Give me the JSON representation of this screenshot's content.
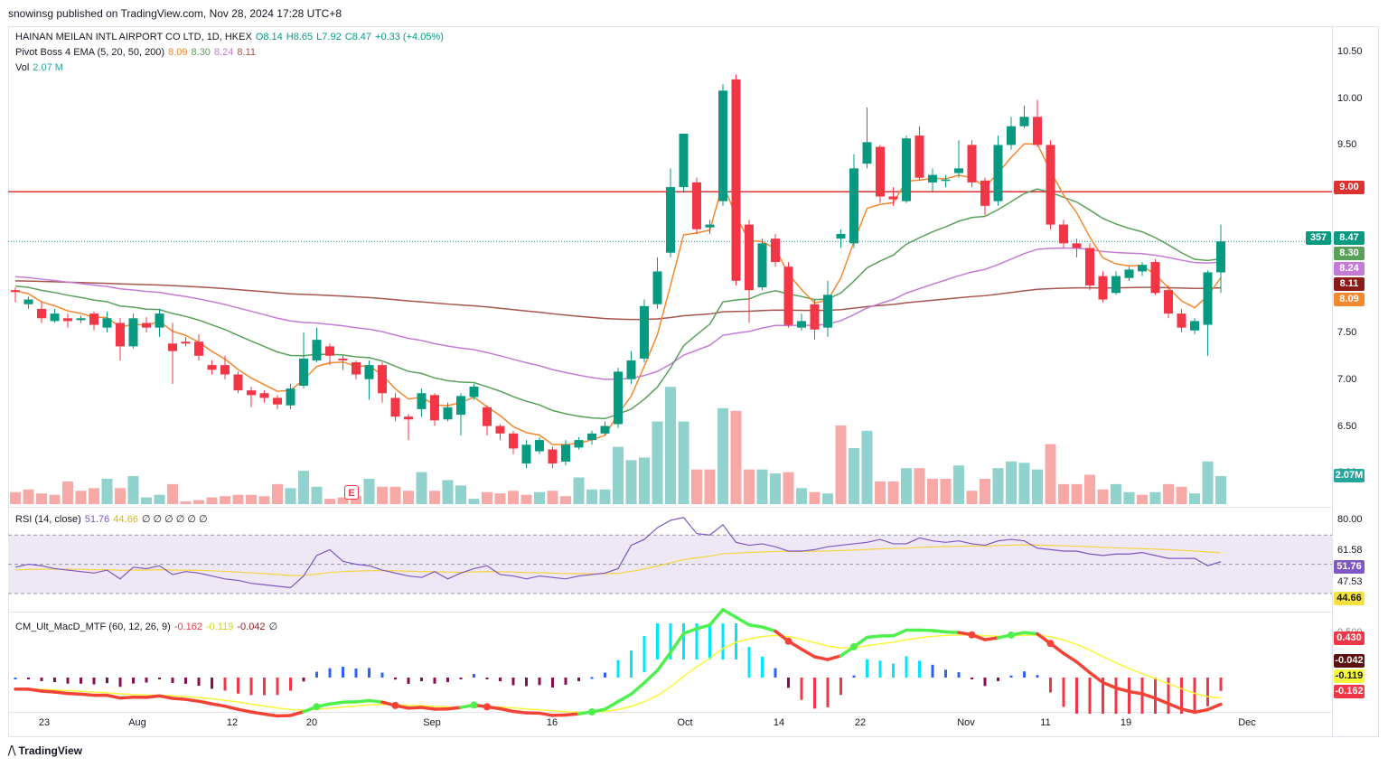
{
  "header": {
    "publisher": "snowinsg published on TradingView.com, Nov 28, 2024 17:28 UTC+8"
  },
  "footer": {
    "brand": "TradingView"
  },
  "legend": {
    "symbol": "HAINAN MEILAN INTL AIRPORT CO LTD, 1D, HKEX",
    "open": "O8.14",
    "high": "H8.65",
    "low": "L7.92",
    "close": "C8.47",
    "change": "+0.33 (+4.05%)",
    "ema_title": "Pivot Boss 4 EMA (5, 20, 50, 200)",
    "ema_values": [
      "8.09",
      "8.30",
      "8.24",
      "8.11"
    ],
    "vol_title": "Vol",
    "vol_value": "2.07 M",
    "rsi_title": "RSI (14, close)",
    "rsi_values": [
      "51.76",
      "44.66"
    ],
    "rsi_extra": "∅ ∅ ∅ ∅ ∅ ∅",
    "macd_title": "CM_Ult_MacD_MTF (60, 12, 26, 9)",
    "macd_values": [
      "-0.162",
      "-0.119",
      "-0.042"
    ],
    "macd_extra": "∅"
  },
  "colors": {
    "up": "#089981",
    "down": "#f23645",
    "vol_up": "#92d2cc",
    "vol_down": "#f7a9a7",
    "ema5": "#f4882f",
    "ema20": "#5aa05a",
    "ema50": "#c47bd6",
    "ema200": "#a4554f",
    "resistance": "#e03131",
    "rsi_line": "#7e57c2",
    "rsi_ma": "#f5d442",
    "rsi_band": "#ede7f6",
    "macd_up": "#4ef04e",
    "macd_down": "#f44336",
    "signal": "#f7f73a"
  },
  "chart_data": {
    "type": "candlestick",
    "x_ticks": [
      "23",
      "Aug",
      "12",
      "20",
      "Sep",
      "16",
      "Oct",
      "14",
      "22",
      "Nov",
      "11",
      "19",
      "Dec"
    ],
    "y_ticks": [
      "10.50",
      "10.00",
      "9.50",
      "9.00",
      "8.50",
      "8.00",
      "7.50",
      "7.00",
      "6.50",
      "6.00"
    ],
    "ylim": [
      5.95,
      10.7
    ],
    "resistance": 9.0,
    "candles": [
      [
        7.95,
        7.93,
        7.98,
        7.82
      ],
      [
        7.8,
        7.85,
        7.88,
        7.75
      ],
      [
        7.75,
        7.65,
        7.83,
        7.6
      ],
      [
        7.62,
        7.7,
        7.75,
        7.6
      ],
      [
        7.65,
        7.62,
        7.7,
        7.55
      ],
      [
        7.63,
        7.65,
        7.68,
        7.6
      ],
      [
        7.7,
        7.58,
        7.72,
        7.52
      ],
      [
        7.55,
        7.65,
        7.72,
        7.5
      ],
      [
        7.6,
        7.35,
        7.65,
        7.2
      ],
      [
        7.35,
        7.65,
        7.7,
        7.33
      ],
      [
        7.6,
        7.55,
        7.66,
        7.5
      ],
      [
        7.55,
        7.7,
        7.75,
        7.45
      ],
      [
        7.38,
        7.3,
        7.6,
        6.95
      ],
      [
        7.4,
        7.38,
        7.45,
        7.35
      ],
      [
        7.4,
        7.25,
        7.48,
        7.2
      ],
      [
        7.15,
        7.1,
        7.2,
        7.05
      ],
      [
        7.15,
        7.05,
        7.25,
        7.0
      ],
      [
        7.05,
        6.88,
        7.08,
        6.85
      ],
      [
        6.88,
        6.83,
        6.92,
        6.7
      ],
      [
        6.85,
        6.8,
        6.88,
        6.75
      ],
      [
        6.8,
        6.73,
        6.83,
        6.68
      ],
      [
        6.72,
        6.9,
        6.95,
        6.68
      ],
      [
        6.93,
        7.22,
        7.5,
        6.9
      ],
      [
        7.2,
        7.42,
        7.55,
        7.18
      ],
      [
        7.35,
        7.25,
        7.38,
        7.15
      ],
      [
        7.22,
        7.2,
        7.25,
        7.1
      ],
      [
        7.18,
        7.05,
        7.2,
        7.0
      ],
      [
        7.0,
        7.15,
        7.2,
        6.78
      ],
      [
        7.15,
        6.85,
        7.18,
        6.75
      ],
      [
        6.8,
        6.6,
        6.85,
        6.55
      ],
      [
        6.6,
        6.57,
        6.63,
        6.35
      ],
      [
        6.68,
        6.85,
        6.9,
        6.6
      ],
      [
        6.83,
        6.56,
        6.85,
        6.5
      ],
      [
        6.57,
        6.7,
        6.75,
        6.55
      ],
      [
        6.62,
        6.82,
        6.85,
        6.4
      ],
      [
        6.81,
        6.92,
        6.95,
        6.78
      ],
      [
        6.7,
        6.5,
        6.72,
        6.4
      ],
      [
        6.5,
        6.42,
        6.52,
        6.35
      ],
      [
        6.42,
        6.26,
        6.45,
        6.2
      ],
      [
        6.1,
        6.3,
        6.35,
        6.05
      ],
      [
        6.23,
        6.35,
        6.38,
        6.2
      ],
      [
        6.25,
        6.1,
        6.28,
        6.05
      ],
      [
        6.12,
        6.3,
        6.35,
        6.08
      ],
      [
        6.27,
        6.35,
        6.38,
        6.25
      ],
      [
        6.35,
        6.42,
        6.45,
        6.3
      ],
      [
        6.42,
        6.5,
        6.55,
        6.4
      ],
      [
        6.52,
        7.08,
        7.12,
        6.48
      ],
      [
        7.0,
        7.2,
        7.3,
        6.95
      ],
      [
        7.22,
        7.78,
        7.85,
        7.18
      ],
      [
        7.8,
        8.15,
        8.3,
        7.75
      ],
      [
        8.35,
        9.05,
        9.25,
        8.3
      ],
      [
        9.05,
        9.62,
        9.58,
        9.0
      ],
      [
        9.1,
        8.6,
        9.15,
        8.55
      ],
      [
        8.62,
        8.65,
        8.7,
        8.55
      ],
      [
        8.9,
        10.08,
        10.15,
        8.85
      ],
      [
        10.2,
        8.05,
        10.25,
        8.0
      ],
      [
        8.65,
        7.95,
        8.7,
        7.6
      ],
      [
        7.98,
        8.45,
        8.5,
        7.95
      ],
      [
        8.5,
        8.25,
        8.55,
        8.2
      ],
      [
        8.2,
        7.58,
        8.25,
        7.55
      ],
      [
        7.55,
        7.62,
        7.7,
        7.52
      ],
      [
        7.8,
        7.53,
        7.85,
        7.42
      ],
      [
        7.55,
        7.9,
        8.05,
        7.45
      ],
      [
        8.5,
        8.55,
        8.6,
        8.4
      ],
      [
        8.45,
        9.25,
        9.4,
        8.4
      ],
      [
        9.3,
        9.53,
        9.9,
        9.25
      ],
      [
        9.48,
        8.95,
        9.5,
        8.88
      ],
      [
        8.95,
        8.92,
        9.05,
        8.85
      ],
      [
        8.9,
        9.57,
        9.6,
        8.88
      ],
      [
        9.6,
        9.15,
        9.7,
        9.12
      ],
      [
        9.1,
        9.18,
        9.25,
        9.0
      ],
      [
        9.12,
        9.13,
        9.18,
        9.05
      ],
      [
        9.2,
        9.25,
        9.55,
        9.15
      ],
      [
        9.5,
        9.1,
        9.55,
        9.05
      ],
      [
        9.12,
        8.85,
        9.15,
        8.75
      ],
      [
        8.9,
        9.5,
        9.6,
        8.85
      ],
      [
        9.5,
        9.7,
        9.8,
        9.45
      ],
      [
        9.7,
        9.8,
        9.92,
        9.68
      ],
      [
        9.8,
        9.5,
        9.98,
        9.48
      ],
      [
        9.5,
        8.65,
        9.55,
        8.6
      ],
      [
        8.65,
        8.45,
        8.7,
        8.4
      ],
      [
        8.45,
        8.4,
        8.5,
        8.3
      ],
      [
        8.4,
        8.0,
        8.45,
        7.95
      ],
      [
        8.1,
        7.85,
        8.15,
        7.82
      ],
      [
        7.92,
        8.1,
        8.15,
        7.9
      ],
      [
        8.08,
        8.17,
        8.2,
        8.05
      ],
      [
        8.15,
        8.22,
        8.25,
        8.1
      ],
      [
        8.25,
        7.92,
        8.28,
        7.9
      ],
      [
        7.95,
        7.7,
        8.0,
        7.65
      ],
      [
        7.7,
        7.55,
        7.75,
        7.5
      ],
      [
        7.52,
        7.62,
        7.65,
        7.48
      ],
      [
        7.58,
        8.14,
        8.16,
        7.25
      ],
      [
        8.14,
        8.47,
        8.65,
        7.92
      ]
    ],
    "volume": [
      [
        0.45,
        0
      ],
      [
        0.55,
        0
      ],
      [
        0.4,
        0
      ],
      [
        0.35,
        0
      ],
      [
        0.85,
        0
      ],
      [
        0.5,
        0
      ],
      [
        0.6,
        0
      ],
      [
        0.95,
        1
      ],
      [
        0.6,
        0
      ],
      [
        1.05,
        1
      ],
      [
        0.25,
        1
      ],
      [
        0.35,
        1
      ],
      [
        0.75,
        0
      ],
      [
        0.1,
        0
      ],
      [
        0.15,
        0
      ],
      [
        0.25,
        0
      ],
      [
        0.3,
        0
      ],
      [
        0.35,
        0
      ],
      [
        0.35,
        0
      ],
      [
        0.3,
        0
      ],
      [
        0.75,
        0
      ],
      [
        0.6,
        1
      ],
      [
        1.25,
        1
      ],
      [
        0.65,
        1
      ],
      [
        0.2,
        0
      ],
      [
        0.25,
        0
      ],
      [
        0.3,
        0
      ],
      [
        0.95,
        1
      ],
      [
        0.65,
        0
      ],
      [
        0.65,
        0
      ],
      [
        0.5,
        0
      ],
      [
        1.2,
        1
      ],
      [
        0.5,
        0
      ],
      [
        0.9,
        1
      ],
      [
        0.7,
        1
      ],
      [
        0.2,
        1
      ],
      [
        0.45,
        0
      ],
      [
        0.4,
        0
      ],
      [
        0.5,
        0
      ],
      [
        0.35,
        0
      ],
      [
        0.45,
        1
      ],
      [
        0.5,
        0
      ],
      [
        0.3,
        0
      ],
      [
        1.0,
        1
      ],
      [
        0.55,
        1
      ],
      [
        0.55,
        1
      ],
      [
        2.15,
        1
      ],
      [
        1.65,
        1
      ],
      [
        1.75,
        1
      ],
      [
        3.1,
        1
      ],
      [
        4.4,
        1
      ],
      [
        3.1,
        1
      ],
      [
        1.3,
        0
      ],
      [
        1.3,
        0
      ],
      [
        3.6,
        1
      ],
      [
        3.5,
        0
      ],
      [
        1.3,
        0
      ],
      [
        1.3,
        1
      ],
      [
        1.15,
        1
      ],
      [
        1.2,
        0
      ],
      [
        0.6,
        1
      ],
      [
        0.45,
        0
      ],
      [
        0.4,
        1
      ],
      [
        2.95,
        0
      ],
      [
        2.1,
        1
      ],
      [
        2.75,
        1
      ],
      [
        0.85,
        0
      ],
      [
        0.85,
        0
      ],
      [
        1.35,
        1
      ],
      [
        1.35,
        0
      ],
      [
        0.95,
        0
      ],
      [
        0.95,
        0
      ],
      [
        1.45,
        1
      ],
      [
        0.5,
        0
      ],
      [
        0.95,
        0
      ],
      [
        1.35,
        1
      ],
      [
        1.6,
        1
      ],
      [
        1.55,
        1
      ],
      [
        1.3,
        1
      ],
      [
        2.25,
        0
      ],
      [
        0.75,
        0
      ],
      [
        0.75,
        0
      ],
      [
        1.1,
        0
      ],
      [
        0.55,
        0
      ],
      [
        0.75,
        1
      ],
      [
        0.45,
        1
      ],
      [
        0.35,
        0
      ],
      [
        0.45,
        1
      ],
      [
        0.75,
        0
      ],
      [
        0.65,
        0
      ],
      [
        0.4,
        1
      ],
      [
        1.6,
        1
      ],
      [
        1.05,
        1
      ]
    ],
    "ema_last": {
      "ema5": 8.09,
      "ema20": 8.3,
      "ema50": 8.24,
      "ema200": 8.11
    },
    "rsi": [
      48,
      50,
      49,
      47,
      46,
      45,
      44,
      46,
      40,
      48,
      47,
      49,
      43,
      45,
      44,
      42,
      40,
      39,
      37,
      36,
      35,
      34,
      42,
      56,
      60,
      52,
      50,
      49,
      46,
      44,
      42,
      41,
      45,
      40,
      44,
      47,
      49,
      43,
      42,
      40,
      42,
      41,
      40,
      42,
      43,
      44,
      47,
      63,
      67,
      75,
      80,
      82,
      71,
      70,
      77,
      65,
      63,
      64,
      62,
      59,
      59,
      60,
      62,
      63,
      64,
      65,
      67,
      64,
      64,
      68,
      66,
      65,
      66,
      64,
      63,
      66,
      67,
      66,
      61,
      60,
      59,
      59,
      57,
      56,
      57,
      57,
      58,
      56,
      54,
      54,
      54,
      49,
      51.76
    ],
    "rsi_ma_last": 44.66,
    "rsi_ticks": [
      "80.00",
      "61.58",
      "47.53"
    ],
    "rsi_badges": [
      "51.76",
      "44.66"
    ],
    "macd_badges": [
      "0.430",
      "-0.042",
      "-0.119",
      "-0.162"
    ],
    "macd_top_tick": "0.500"
  },
  "price_label": {
    "count": "357",
    "price": "8.47"
  },
  "resistance_label": "9.00",
  "ema_badges": [
    "8.30",
    "8.24",
    "8.11",
    "8.09"
  ],
  "vol_badge": "2.07M",
  "earnings_marker": "E"
}
